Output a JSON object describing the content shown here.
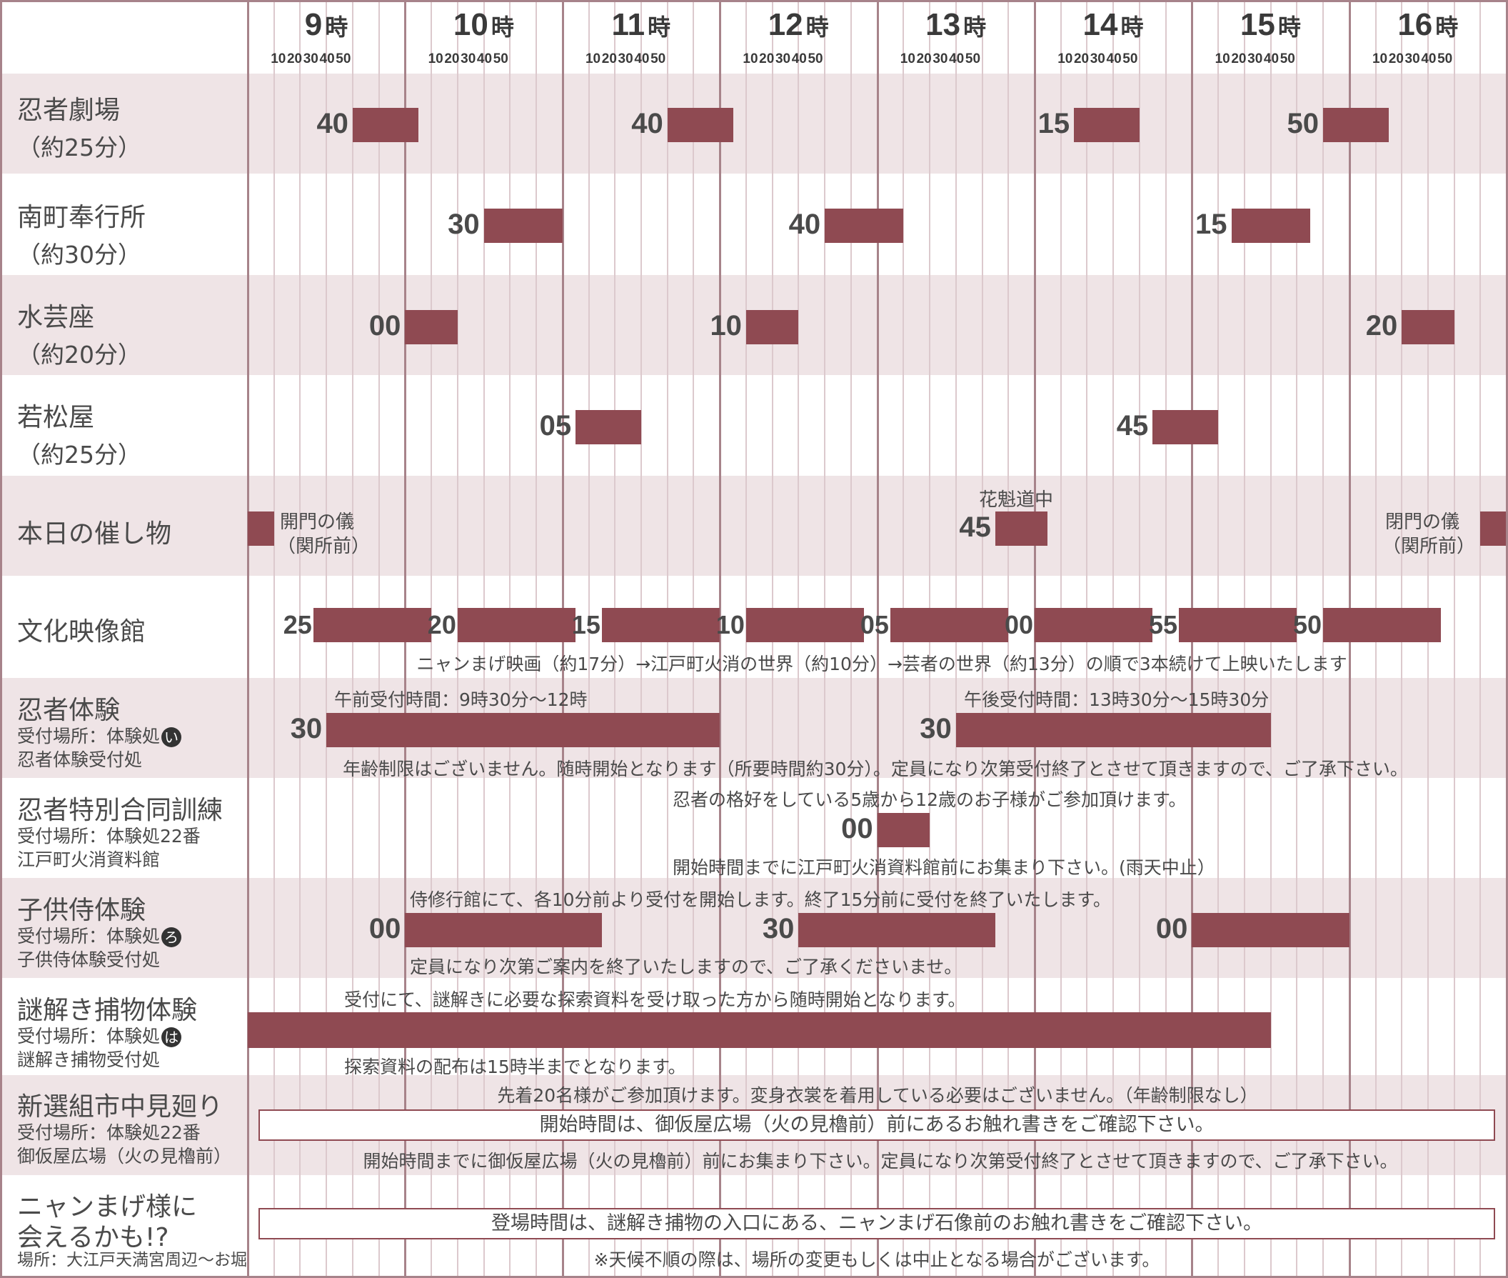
{
  "colors": {
    "bar": "#8f4a52",
    "stripe": "#efe4e6",
    "hour_line": "#a7838a",
    "minor_line": "#dcc9cd"
  },
  "hours": [
    "9",
    "10",
    "11",
    "12",
    "13",
    "14",
    "15",
    "16"
  ],
  "hour_unit": "時",
  "minute_ticks": [
    "10",
    "20",
    "30",
    "40",
    "50"
  ],
  "rows": [
    {
      "name": "忍者劇場",
      "sub": "（約25分）"
    },
    {
      "name": "南町奉行所",
      "sub": "（約30分）"
    },
    {
      "name": "水芸座",
      "sub": "（約20分）"
    },
    {
      "name": "若松屋",
      "sub": "（約25分）"
    },
    {
      "name": "本日の催し物"
    },
    {
      "name": "文化映像館"
    },
    {
      "name": "忍者体験",
      "sub1": "受付場所：体験処",
      "badge": "い",
      "sub2": "忍者体験受付処"
    },
    {
      "name": "忍者特別合同訓練",
      "sub1": "受付場所：体験処22番",
      "sub2": "江戸町火消資料館"
    },
    {
      "name": "子供侍体験",
      "sub1": "受付場所：体験処",
      "badge": "ろ",
      "sub2": "子供侍体験受付処"
    },
    {
      "name": "謎解き捕物体験",
      "sub1": "受付場所：体験処",
      "badge": "は",
      "sub2": "謎解き捕物受付処"
    },
    {
      "name": "新選組市中見廻り",
      "sub1": "受付場所：体験処22番",
      "sub2": "御仮屋広場（火の見櫓前）"
    },
    {
      "name": "ニャンまげ様に",
      "name2": "会えるかも!?",
      "sub1": "場所：大江戸天満宮周辺〜お堀"
    }
  ],
  "bars": [
    {
      "row": 0,
      "start": 9.6667,
      "end": 10.0833,
      "label": "40"
    },
    {
      "row": 0,
      "start": 11.6667,
      "end": 12.0833,
      "label": "40"
    },
    {
      "row": 0,
      "start": 14.25,
      "end": 14.6667,
      "label": "15"
    },
    {
      "row": 0,
      "start": 15.8333,
      "end": 16.25,
      "label": "50"
    },
    {
      "row": 1,
      "start": 10.5,
      "end": 11.0,
      "label": "30"
    },
    {
      "row": 1,
      "start": 12.6667,
      "end": 13.1667,
      "label": "40"
    },
    {
      "row": 1,
      "start": 15.25,
      "end": 15.75,
      "label": "15"
    },
    {
      "row": 2,
      "start": 10.0,
      "end": 10.3333,
      "label": "00"
    },
    {
      "row": 2,
      "start": 12.1667,
      "end": 12.5,
      "label": "10"
    },
    {
      "row": 2,
      "start": 16.3333,
      "end": 16.6667,
      "label": "20"
    },
    {
      "row": 3,
      "start": 11.0833,
      "end": 11.5,
      "label": "05"
    },
    {
      "row": 3,
      "start": 14.75,
      "end": 15.1667,
      "label": "45"
    },
    {
      "row": 4,
      "start": 9.0,
      "end": 9.1667,
      "label": ""
    },
    {
      "row": 4,
      "start": 13.75,
      "end": 14.0833,
      "label": "45"
    },
    {
      "row": 4,
      "start": 16.8333,
      "end": 17.0,
      "label": ""
    },
    {
      "row": 5,
      "start": 9.4167,
      "end": 10.1667,
      "label": "25"
    },
    {
      "row": 5,
      "start": 10.3333,
      "end": 11.0833,
      "label": "20"
    },
    {
      "row": 5,
      "start": 11.25,
      "end": 12.0,
      "label": "15"
    },
    {
      "row": 5,
      "start": 12.1667,
      "end": 12.9167,
      "label": "10"
    },
    {
      "row": 5,
      "start": 13.0833,
      "end": 13.8333,
      "label": "05"
    },
    {
      "row": 5,
      "start": 14.0,
      "end": 14.75,
      "label": "00"
    },
    {
      "row": 5,
      "start": 14.9167,
      "end": 15.6667,
      "label": "55"
    },
    {
      "row": 5,
      "start": 15.8333,
      "end": 16.5833,
      "label": "50"
    },
    {
      "row": 6,
      "start": 9.5,
      "end": 12.0,
      "label": "30"
    },
    {
      "row": 6,
      "start": 13.5,
      "end": 15.5,
      "label": "30"
    },
    {
      "row": 7,
      "start": 13.0,
      "end": 13.3333,
      "label": "00"
    },
    {
      "row": 8,
      "start": 10.0,
      "end": 11.25,
      "label": "00"
    },
    {
      "row": 8,
      "start": 12.5,
      "end": 13.75,
      "label": "30"
    },
    {
      "row": 8,
      "start": 15.0,
      "end": 16.0,
      "label": "00"
    },
    {
      "row": 9,
      "start": 9.0,
      "end": 15.5,
      "label": ""
    }
  ],
  "notes": {
    "ceremony_left_1": "開門の儀",
    "ceremony_left_2": "（関所前）",
    "oiran": "花魁道中",
    "ceremony_right_1": "閉門の儀",
    "ceremony_right_2": "（関所前）",
    "eizo": "ニャンまげ映画（約17分）→江戸町火消の世界（約10分）→芸者の世界（約13分）の順で3本続けて上映いたします",
    "ninja_am": "午前受付時間：9時30分〜12時",
    "ninja_pm": "午後受付時間：13時30分〜15時30分",
    "ninja_below": "年齢制限はございません。随時開始となります（所要時間約30分）。定員になり次第受付終了とさせて頂きますので、ご了承下さい。",
    "special_above": "忍者の格好をしている5歳から12歳のお子様がご参加頂けます。",
    "special_below": "開始時間までに江戸町火消資料館前にお集まり下さい。(雨天中止）",
    "samurai_above": "侍修行館にて、各10分前より受付を開始します。終了15分前に受付を終了いたします。",
    "samurai_below": "定員になり次第ご案内を終了いたしますので、ご了承くださいませ。",
    "nazo_above": "受付にて、謎解きに必要な探索資料を受け取った方から随時開始となります。",
    "nazo_below": "探索資料の配布は15時半までとなります。",
    "shinsen_above": "先着20名様がご参加頂けます。変身衣裳を着用している必要はございません。（年齢制限なし）",
    "shinsen_box": "開始時間は、御仮屋広場（火の見櫓前）前にあるお触れ書きをご確認下さい。",
    "shinsen_below": "開始時間までに御仮屋広場（火の見櫓前）前にお集まり下さい。定員になり次第受付終了とさせて頂きますので、ご了承下さい。",
    "nyan_box": "登場時間は、謎解き捕物の入口にある、ニャンまげ石像前のお触れ書きをご確認下さい。",
    "nyan_below": "※天候不順の際は、場所の変更もしくは中止となる場合がございます。"
  }
}
